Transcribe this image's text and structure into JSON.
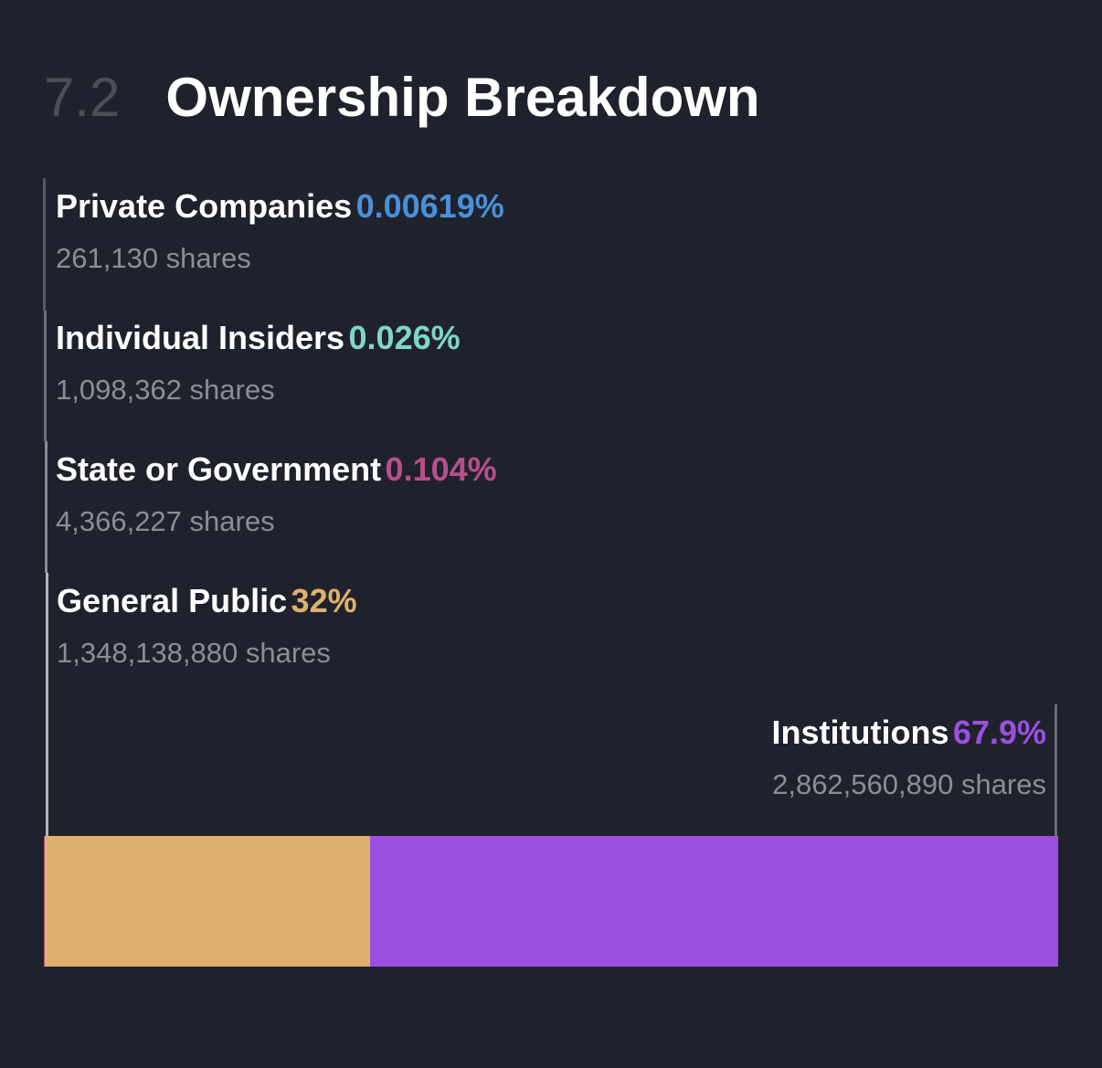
{
  "header": {
    "section_number": "7.2",
    "title": "Ownership Breakdown"
  },
  "chart_data": {
    "type": "bar",
    "orientation": "horizontal-stacked",
    "title": "Ownership Breakdown",
    "series": [
      {
        "name": "Private Companies",
        "percent_label": "0.00619%",
        "value": 0.00619,
        "shares": "261,130 shares",
        "color": "#4a90d9"
      },
      {
        "name": "Individual Insiders",
        "percent_label": "0.026%",
        "value": 0.026,
        "shares": "1,098,362 shares",
        "color": "#7fd6c9"
      },
      {
        "name": "State or Government",
        "percent_label": "0.104%",
        "value": 0.104,
        "shares": "4,366,227 shares",
        "color": "#b5508a"
      },
      {
        "name": "General Public",
        "percent_label": "32%",
        "value": 32,
        "shares": "1,348,138,880 shares",
        "color": "#ddb16d"
      },
      {
        "name": "Institutions",
        "percent_label": "67.9%",
        "value": 67.9,
        "shares": "2,862,560,890 shares",
        "color": "#9b4fe0"
      }
    ]
  }
}
